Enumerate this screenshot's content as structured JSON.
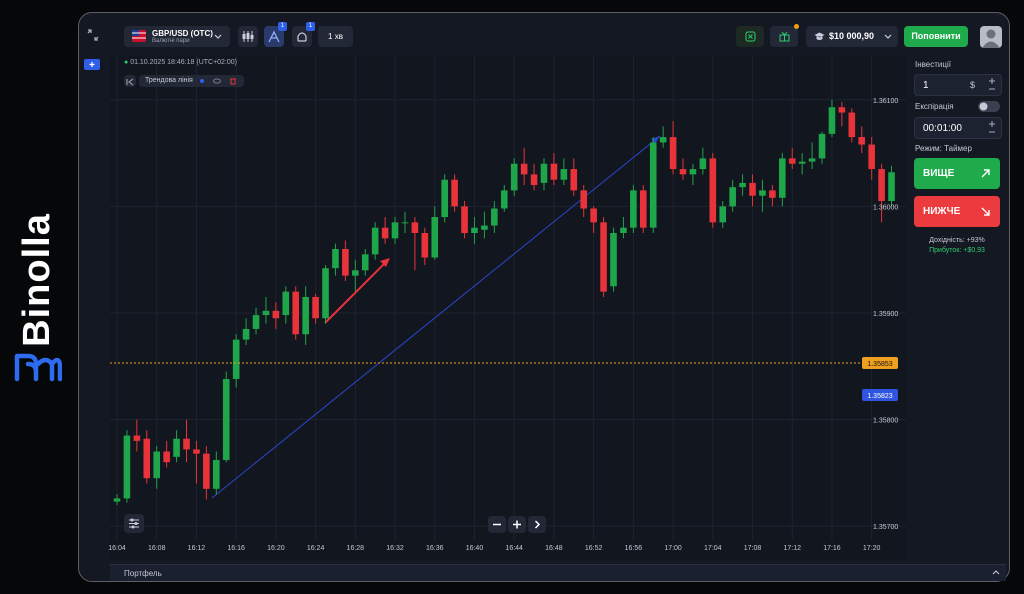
{
  "brand": "Binolla",
  "header": {
    "pair": "GBP/USD (OTC)",
    "pair_group": "Валютні пари",
    "drawing_badge": 1,
    "indicator_badge": 1,
    "timeframe": "1 хв",
    "balance": "$10 000,90",
    "deposit": "Поповнити"
  },
  "chart_info": {
    "timestamp": "01.10.2025 18:46:18 (UTC+02:00)",
    "drawing_tool": "Трендова лінія"
  },
  "chart_data": {
    "type": "candlestick",
    "x": [
      "16:04",
      "16:05",
      "16:06",
      "16:07",
      "16:08",
      "16:09",
      "16:10",
      "16:11",
      "16:12",
      "16:13",
      "16:14",
      "16:15",
      "16:16",
      "16:17",
      "16:18",
      "16:19",
      "16:20",
      "16:21",
      "16:22",
      "16:23",
      "16:24",
      "16:25",
      "16:26",
      "16:27",
      "16:28",
      "16:29",
      "16:30",
      "16:31",
      "16:32",
      "16:33",
      "16:34",
      "16:35",
      "16:36",
      "16:37",
      "16:38",
      "16:39",
      "16:40",
      "16:41",
      "16:42",
      "16:43",
      "16:44",
      "16:45",
      "16:46",
      "16:47",
      "16:48",
      "16:49",
      "16:50",
      "16:51",
      "16:52",
      "16:53",
      "16:54",
      "16:55",
      "16:56",
      "16:57",
      "16:58",
      "16:59",
      "17:00",
      "17:01",
      "17:02",
      "17:03",
      "17:04",
      "17:05",
      "17:06",
      "17:07",
      "17:08",
      "17:09",
      "17:10",
      "17:11",
      "17:12",
      "17:13",
      "17:14",
      "17:15",
      "17:16",
      "17:17",
      "17:18",
      "17:19",
      "17:20",
      "17:21",
      "17:22"
    ],
    "candles": {
      "open": [
        1.35723,
        1.35726,
        1.35785,
        1.35782,
        1.35745,
        1.3577,
        1.35765,
        1.35782,
        1.35772,
        1.35768,
        1.35735,
        1.35762,
        1.35838,
        1.35875,
        1.35885,
        1.35898,
        1.35902,
        1.35898,
        1.3592,
        1.3588,
        1.35915,
        1.35895,
        1.35942,
        1.3596,
        1.35935,
        1.3594,
        1.35955,
        1.3598,
        1.3597,
        1.35985,
        1.35985,
        1.35975,
        1.35952,
        1.3599,
        1.36025,
        1.36,
        1.35975,
        1.35978,
        1.35982,
        1.35998,
        1.36015,
        1.3604,
        1.3603,
        1.36022,
        1.3604,
        1.36025,
        1.36035,
        1.36015,
        1.35998,
        1.35985,
        1.35925,
        1.35975,
        1.3598,
        1.36015,
        1.3598,
        1.3606,
        1.36065,
        1.36035,
        1.3603,
        1.36035,
        1.36045,
        1.35985,
        1.36,
        1.36018,
        1.36022,
        1.3601,
        1.36015,
        1.36008,
        1.36045,
        1.3604,
        1.36042,
        1.36045,
        1.36068,
        1.36093,
        1.36088,
        1.36065,
        1.36058,
        1.36035,
        1.36005
      ],
      "high": [
        1.3573,
        1.3579,
        1.358,
        1.3579,
        1.35775,
        1.3578,
        1.3579,
        1.358,
        1.3578,
        1.35775,
        1.3577,
        1.35845,
        1.3588,
        1.35895,
        1.35905,
        1.35915,
        1.3591,
        1.35925,
        1.35925,
        1.35925,
        1.35918,
        1.35945,
        1.35965,
        1.35968,
        1.3595,
        1.3596,
        1.35985,
        1.3599,
        1.3599,
        1.35995,
        1.3599,
        1.3598,
        1.36,
        1.3603,
        1.3603,
        1.36005,
        1.3599,
        1.35995,
        1.36005,
        1.3602,
        1.36045,
        1.36055,
        1.3604,
        1.36045,
        1.3605,
        1.36045,
        1.36045,
        1.3602,
        1.36,
        1.3599,
        1.3598,
        1.3599,
        1.3602,
        1.3602,
        1.36065,
        1.36075,
        1.3608,
        1.36045,
        1.3604,
        1.36055,
        1.3605,
        1.36005,
        1.36025,
        1.3603,
        1.3603,
        1.36025,
        1.3602,
        1.3605,
        1.36055,
        1.3605,
        1.3606,
        1.3607,
        1.361,
        1.36098,
        1.36092,
        1.36075,
        1.36065,
        1.3604,
        1.36038
      ],
      "low": [
        1.3572,
        1.35722,
        1.3577,
        1.3574,
        1.35735,
        1.35755,
        1.3576,
        1.3576,
        1.3574,
        1.35725,
        1.3573,
        1.3576,
        1.3583,
        1.3587,
        1.3588,
        1.3589,
        1.35885,
        1.3589,
        1.35875,
        1.3587,
        1.3589,
        1.3589,
        1.35935,
        1.3593,
        1.3592,
        1.35935,
        1.3595,
        1.35965,
        1.35965,
        1.35975,
        1.3594,
        1.35945,
        1.3595,
        1.35985,
        1.35995,
        1.3597,
        1.35965,
        1.3597,
        1.35975,
        1.35995,
        1.3601,
        1.3602,
        1.36015,
        1.36015,
        1.3602,
        1.3602,
        1.3601,
        1.3599,
        1.35975,
        1.35915,
        1.3592,
        1.3597,
        1.35975,
        1.35975,
        1.35975,
        1.36055,
        1.3603,
        1.36025,
        1.3602,
        1.3603,
        1.3598,
        1.3598,
        1.35995,
        1.3601,
        1.36,
        1.35995,
        1.36,
        1.36,
        1.36035,
        1.3603,
        1.36035,
        1.3604,
        1.36065,
        1.36075,
        1.3606,
        1.3605,
        1.36025,
        1.35985,
        1.36
      ],
      "close": [
        1.35726,
        1.35785,
        1.3578,
        1.35745,
        1.3577,
        1.3576,
        1.35782,
        1.35772,
        1.35768,
        1.35735,
        1.35762,
        1.35838,
        1.35875,
        1.35885,
        1.35898,
        1.35902,
        1.35895,
        1.3592,
        1.3588,
        1.35915,
        1.35895,
        1.35942,
        1.3596,
        1.35935,
        1.3594,
        1.35955,
        1.3598,
        1.3597,
        1.35985,
        1.35985,
        1.35975,
        1.35952,
        1.3599,
        1.36025,
        1.36,
        1.35975,
        1.3598,
        1.35982,
        1.35998,
        1.36015,
        1.3604,
        1.3603,
        1.3602,
        1.3604,
        1.36025,
        1.36035,
        1.36015,
        1.35998,
        1.35985,
        1.3592,
        1.35975,
        1.3598,
        1.36015,
        1.3598,
        1.3606,
        1.36065,
        1.36035,
        1.3603,
        1.36035,
        1.36045,
        1.35985,
        1.36,
        1.36018,
        1.36022,
        1.3601,
        1.36015,
        1.36008,
        1.36045,
        1.3604,
        1.36042,
        1.36045,
        1.36068,
        1.36093,
        1.36088,
        1.36065,
        1.36058,
        1.36035,
        1.36005,
        1.36032
      ]
    },
    "up_color": "#1fa54a",
    "down_color": "#e8333a",
    "ylim": [
      1.35687,
      1.36142
    ],
    "yticks": [
      {
        "value": 1.357,
        "label": "1.35700"
      },
      {
        "value": 1.358,
        "label": "1.35800"
      },
      {
        "value": 1.359,
        "label": "1.35900"
      },
      {
        "value": 1.36,
        "label": "1.36000"
      },
      {
        "value": 1.361,
        "label": "1.36100"
      }
    ],
    "xticks": [
      "16:04",
      "16:08",
      "16:12",
      "16:16",
      "16:20",
      "16:24",
      "16:28",
      "16:32",
      "16:36",
      "16:40",
      "16:44",
      "16:48",
      "16:52",
      "16:56",
      "17:00",
      "17:04",
      "17:08",
      "17:12",
      "17:16",
      "17:20"
    ],
    "grid": true,
    "price_lines": [
      {
        "value": 1.35853,
        "color": "#f0a020",
        "dashed": true
      },
      {
        "value": 1.35823,
        "color": "#2f55e0",
        "dashed": false
      }
    ]
  },
  "trade_panel": {
    "investment_label": "Інвестиції",
    "investment_value": 1,
    "currency": "$",
    "expiration_label": "Експірація",
    "expiration_value": "00:01:00",
    "mode": "Режим: Таймер",
    "up": "ВИЩЕ",
    "down": "НИЖЧЕ",
    "payout": "Дохідність: +93%",
    "profit": "Прибуток: +$0,93"
  },
  "footer": {
    "portfolio": "Портфель"
  }
}
